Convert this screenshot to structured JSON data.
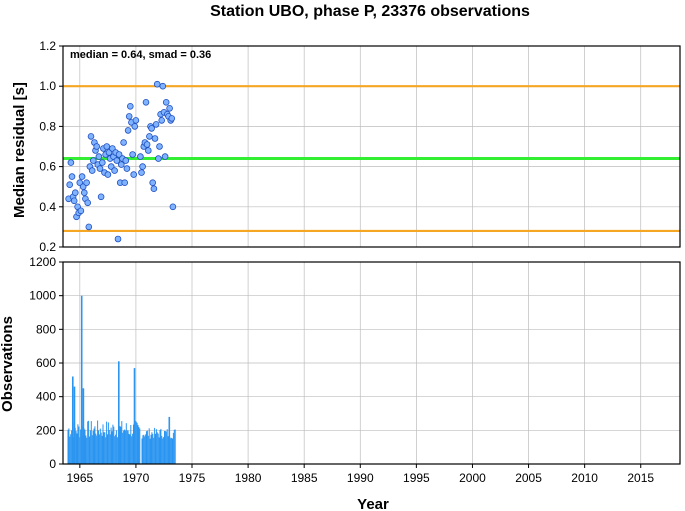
{
  "title": "Station UBO, phase P, 23376 observations",
  "colors": {
    "median_line": "#33ee33",
    "smad_lines": "#f5a623",
    "points_fill": "#7fb3ff",
    "points_stroke": "#1f4fbf",
    "bars": "#2b95f0"
  },
  "chart_data": [
    {
      "type": "scatter",
      "ylabel": "Median residual [s]",
      "xlim": [
        1963.5,
        2018.5
      ],
      "ylim": [
        0.2,
        1.2
      ],
      "yticks": [
        0.2,
        0.4,
        0.6,
        0.8,
        1.0,
        1.2
      ],
      "ytick_labels": [
        "0.2",
        "0.4",
        "0.6",
        "0.8",
        "1.0",
        "1.2"
      ],
      "grid": true,
      "annotation": "median = 0.64, smad = 0.36",
      "hlines": [
        {
          "y": 0.64,
          "role": "median"
        },
        {
          "y": 1.0,
          "role": "upper"
        },
        {
          "y": 0.28,
          "role": "lower"
        }
      ],
      "points": [
        {
          "x": 1964.0,
          "y": 0.44
        },
        {
          "x": 1964.1,
          "y": 0.51
        },
        {
          "x": 1964.2,
          "y": 0.62
        },
        {
          "x": 1964.3,
          "y": 0.55
        },
        {
          "x": 1964.4,
          "y": 0.45
        },
        {
          "x": 1964.5,
          "y": 0.43
        },
        {
          "x": 1964.6,
          "y": 0.47
        },
        {
          "x": 1964.7,
          "y": 0.35
        },
        {
          "x": 1964.8,
          "y": 0.4
        },
        {
          "x": 1964.9,
          "y": 0.37
        },
        {
          "x": 1965.0,
          "y": 0.52
        },
        {
          "x": 1965.1,
          "y": 0.38
        },
        {
          "x": 1965.2,
          "y": 0.55
        },
        {
          "x": 1965.3,
          "y": 0.5
        },
        {
          "x": 1965.4,
          "y": 0.47
        },
        {
          "x": 1965.5,
          "y": 0.44
        },
        {
          "x": 1965.6,
          "y": 0.52
        },
        {
          "x": 1965.7,
          "y": 0.42
        },
        {
          "x": 1965.8,
          "y": 0.3
        },
        {
          "x": 1965.9,
          "y": 0.6
        },
        {
          "x": 1966.0,
          "y": 0.75
        },
        {
          "x": 1966.1,
          "y": 0.58
        },
        {
          "x": 1966.2,
          "y": 0.63
        },
        {
          "x": 1966.3,
          "y": 0.72
        },
        {
          "x": 1966.4,
          "y": 0.68
        },
        {
          "x": 1966.5,
          "y": 0.7
        },
        {
          "x": 1966.6,
          "y": 0.61
        },
        {
          "x": 1966.7,
          "y": 0.65
        },
        {
          "x": 1966.8,
          "y": 0.59
        },
        {
          "x": 1966.9,
          "y": 0.45
        },
        {
          "x": 1967.0,
          "y": 0.62
        },
        {
          "x": 1967.1,
          "y": 0.69
        },
        {
          "x": 1967.2,
          "y": 0.57
        },
        {
          "x": 1967.3,
          "y": 0.66
        },
        {
          "x": 1967.4,
          "y": 0.7
        },
        {
          "x": 1967.5,
          "y": 0.56
        },
        {
          "x": 1967.6,
          "y": 0.67
        },
        {
          "x": 1967.7,
          "y": 0.64
        },
        {
          "x": 1967.8,
          "y": 0.6
        },
        {
          "x": 1967.9,
          "y": 0.69
        },
        {
          "x": 1968.0,
          "y": 0.65
        },
        {
          "x": 1968.1,
          "y": 0.58
        },
        {
          "x": 1968.2,
          "y": 0.67
        },
        {
          "x": 1968.3,
          "y": 0.63
        },
        {
          "x": 1968.4,
          "y": 0.24
        },
        {
          "x": 1968.5,
          "y": 0.66
        },
        {
          "x": 1968.6,
          "y": 0.52
        },
        {
          "x": 1968.7,
          "y": 0.61
        },
        {
          "x": 1968.8,
          "y": 0.64
        },
        {
          "x": 1968.9,
          "y": 0.72
        },
        {
          "x": 1969.0,
          "y": 0.52
        },
        {
          "x": 1969.1,
          "y": 0.63
        },
        {
          "x": 1969.2,
          "y": 0.59
        },
        {
          "x": 1969.3,
          "y": 0.78
        },
        {
          "x": 1969.4,
          "y": 0.85
        },
        {
          "x": 1969.5,
          "y": 0.9
        },
        {
          "x": 1969.6,
          "y": 0.82
        },
        {
          "x": 1969.7,
          "y": 0.66
        },
        {
          "x": 1969.8,
          "y": 0.56
        },
        {
          "x": 1969.9,
          "y": 0.8
        },
        {
          "x": 1970.0,
          "y": 0.83
        },
        {
          "x": 1970.4,
          "y": 0.65
        },
        {
          "x": 1970.5,
          "y": 0.57
        },
        {
          "x": 1970.6,
          "y": 0.6
        },
        {
          "x": 1970.7,
          "y": 0.7
        },
        {
          "x": 1970.8,
          "y": 0.72
        },
        {
          "x": 1970.9,
          "y": 0.92
        },
        {
          "x": 1971.0,
          "y": 0.71
        },
        {
          "x": 1971.1,
          "y": 0.68
        },
        {
          "x": 1971.2,
          "y": 0.75
        },
        {
          "x": 1971.3,
          "y": 0.8
        },
        {
          "x": 1971.4,
          "y": 0.79
        },
        {
          "x": 1971.5,
          "y": 0.52
        },
        {
          "x": 1971.6,
          "y": 0.49
        },
        {
          "x": 1971.7,
          "y": 0.74
        },
        {
          "x": 1971.8,
          "y": 0.81
        },
        {
          "x": 1971.9,
          "y": 1.01
        },
        {
          "x": 1972.0,
          "y": 0.64
        },
        {
          "x": 1972.1,
          "y": 0.7
        },
        {
          "x": 1972.2,
          "y": 0.86
        },
        {
          "x": 1972.3,
          "y": 0.83
        },
        {
          "x": 1972.4,
          "y": 1.0
        },
        {
          "x": 1972.5,
          "y": 0.87
        },
        {
          "x": 1972.6,
          "y": 0.65
        },
        {
          "x": 1972.7,
          "y": 0.92
        },
        {
          "x": 1972.8,
          "y": 0.86
        },
        {
          "x": 1972.9,
          "y": 0.85
        },
        {
          "x": 1973.0,
          "y": 0.89
        },
        {
          "x": 1973.1,
          "y": 0.83
        },
        {
          "x": 1973.2,
          "y": 0.84
        },
        {
          "x": 1973.3,
          "y": 0.4
        }
      ]
    },
    {
      "type": "bar",
      "xlabel": "Year",
      "ylabel": "Observations",
      "xlim": [
        1963.5,
        2018.5
      ],
      "ylim": [
        0,
        1200
      ],
      "xticks": [
        1965,
        1970,
        1975,
        1980,
        1985,
        1990,
        1995,
        2000,
        2005,
        2010,
        2015
      ],
      "xtick_labels": [
        "1965",
        "1970",
        "1975",
        "1980",
        "1985",
        "1990",
        "1995",
        "2000",
        "2005",
        "2010",
        "2015"
      ],
      "yticks": [
        0,
        200,
        400,
        600,
        800,
        1000,
        1200
      ],
      "ytick_labels": [
        "0",
        "200",
        "400",
        "600",
        "800",
        "1000",
        "1200"
      ],
      "grid": true,
      "bin_width": 0.08,
      "spikes": [
        {
          "x": 1964.3,
          "y": 520
        },
        {
          "x": 1964.45,
          "y": 460
        },
        {
          "x": 1965.1,
          "y": 1000
        },
        {
          "x": 1965.25,
          "y": 450
        },
        {
          "x": 1968.4,
          "y": 610
        },
        {
          "x": 1969.8,
          "y": 570
        },
        {
          "x": 1972.9,
          "y": 280
        }
      ],
      "segments": [
        {
          "start": 1963.9,
          "end": 1970.3,
          "low": 150,
          "high": 260
        },
        {
          "start": 1970.5,
          "end": 1973.5,
          "low": 150,
          "high": 215
        }
      ]
    }
  ]
}
